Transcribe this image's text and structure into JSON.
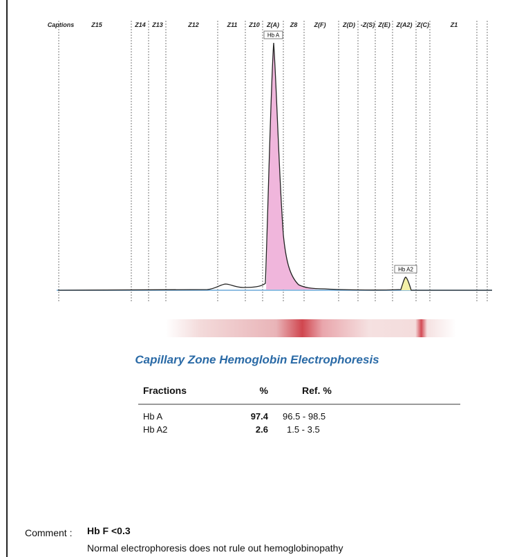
{
  "header": {
    "zones": [
      "Captions",
      "Z15",
      "Z14",
      "Z13",
      "Z12",
      "Z11",
      "Z10",
      "Z(A)",
      "Z8",
      "Z(F)",
      "Z(D)",
      "-Z(S)",
      "Z(E)",
      "Z(A2)",
      "Z(C)",
      "Z1"
    ]
  },
  "peaks": [
    "Hb A",
    "Hb A2"
  ],
  "title": "Capillary Zone Hemoglobin Electrophoresis",
  "table": {
    "header": [
      "Fractions",
      "%",
      "Ref. %"
    ],
    "rows": [
      [
        "Hb A",
        "97.4",
        "96.5 - 98.5"
      ],
      [
        "Hb A2",
        "2.6",
        "1.5 - 3.5"
      ]
    ]
  },
  "comment": {
    "label": "Comment :",
    "value": "Hb F <0.3",
    "note": "Normal electrophoresis does not rule out hemoglobinopathy"
  }
}
